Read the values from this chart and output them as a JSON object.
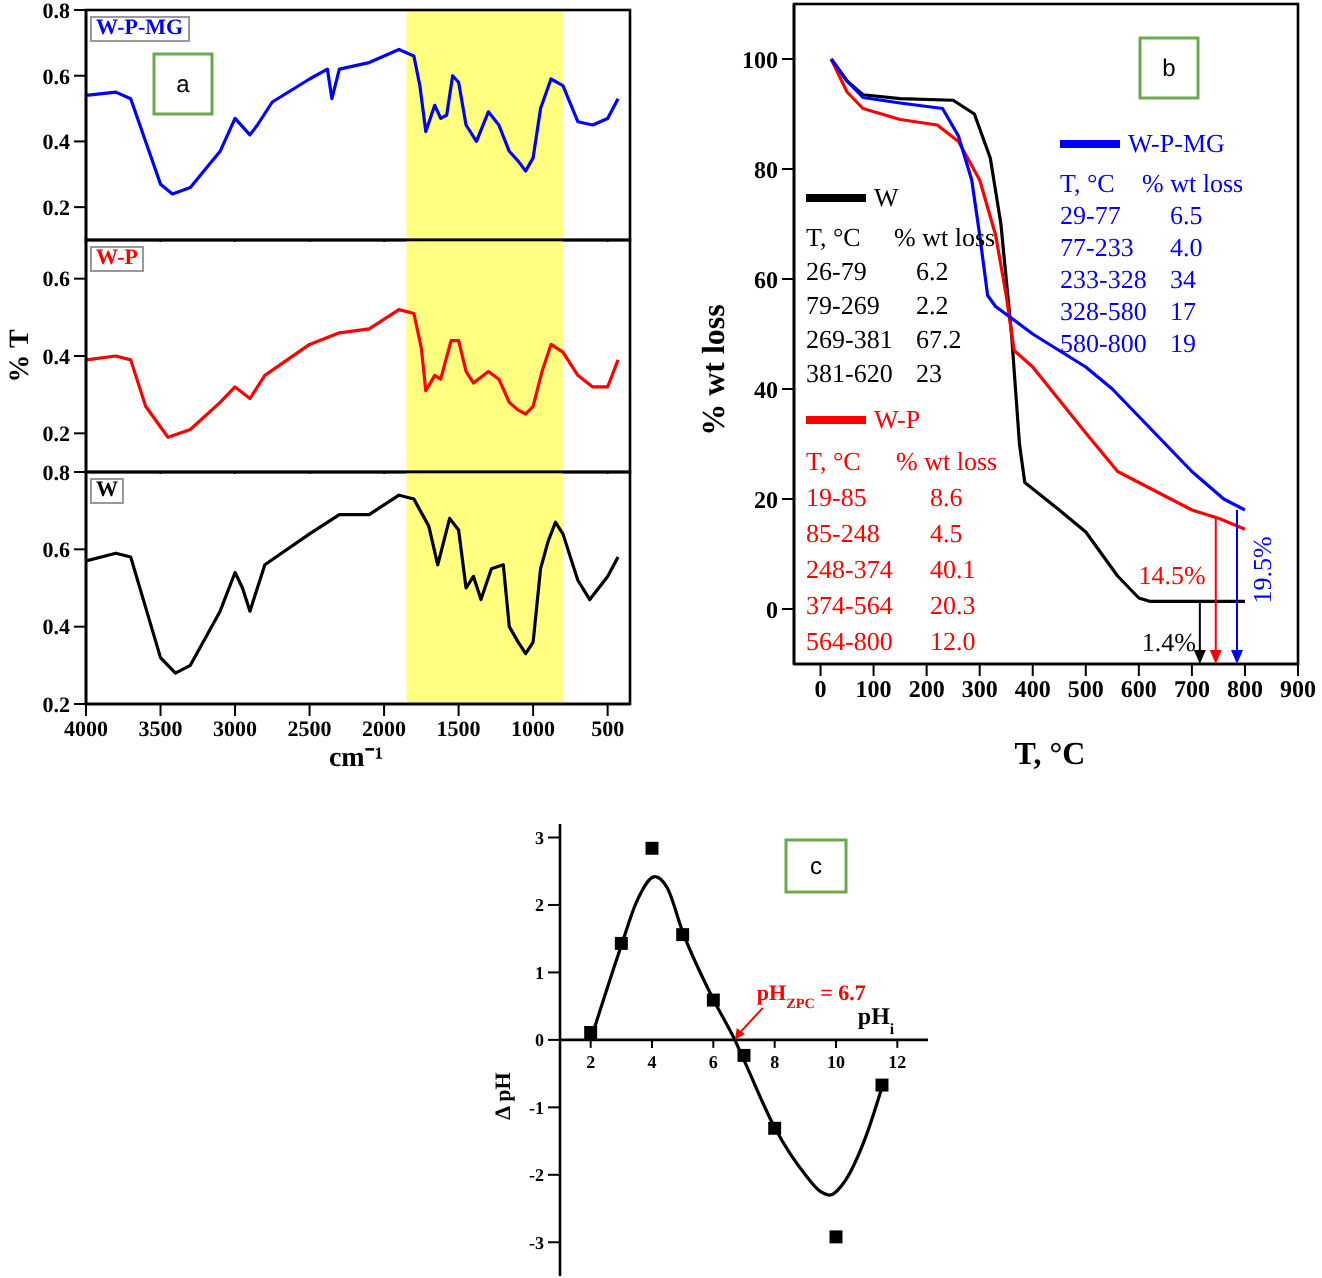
{
  "chart_data": [
    {
      "type": "line",
      "series": [
        {
          "name": "W-P-MG",
          "color": "#0000ff",
          "marker": "none",
          "x": [
            4000,
            3800,
            3700,
            3600,
            3500,
            3420,
            3300,
            3100,
            3000,
            2900,
            2850,
            2750,
            2500,
            2380,
            2350,
            2300,
            2100,
            1900,
            1800,
            1760,
            1720,
            1660,
            1620,
            1580,
            1540,
            1500,
            1450,
            1380,
            1300,
            1230,
            1160,
            1100,
            1050,
            1000,
            950,
            880,
            800,
            700,
            600,
            500,
            430
          ],
          "values": [
            0.54,
            0.55,
            0.53,
            0.4,
            0.27,
            0.24,
            0.26,
            0.37,
            0.47,
            0.42,
            0.45,
            0.52,
            0.59,
            0.62,
            0.53,
            0.62,
            0.64,
            0.68,
            0.66,
            0.57,
            0.43,
            0.51,
            0.47,
            0.48,
            0.6,
            0.58,
            0.45,
            0.4,
            0.49,
            0.45,
            0.37,
            0.34,
            0.31,
            0.35,
            0.5,
            0.59,
            0.57,
            0.46,
            0.45,
            0.47,
            0.53
          ]
        }
      ],
      "xlim": [
        4000,
        350
      ],
      "xticks": [
        4000,
        3500,
        3000,
        2500,
        2000,
        1500,
        1000,
        500
      ],
      "ylim": [
        0.1,
        0.8
      ],
      "yticks": [
        0.2,
        0.4,
        0.6,
        0.8
      ],
      "tick_labels": "y",
      "bands": [
        {
          "axis": "x",
          "from": 1850,
          "to": 800,
          "color": "#ffff80"
        }
      ],
      "legend": "top left",
      "annotations": [
        "a"
      ]
    },
    {
      "type": "line",
      "series": [
        {
          "name": "W-P",
          "color": "#ff0000",
          "marker": "none",
          "x": [
            4000,
            3800,
            3700,
            3600,
            3450,
            3300,
            3100,
            3000,
            2900,
            2800,
            2500,
            2300,
            2100,
            1900,
            1800,
            1750,
            1720,
            1660,
            1620,
            1550,
            1500,
            1450,
            1400,
            1300,
            1230,
            1160,
            1100,
            1050,
            1000,
            940,
            880,
            800,
            700,
            600,
            500,
            430
          ],
          "values": [
            0.39,
            0.4,
            0.39,
            0.27,
            0.19,
            0.21,
            0.28,
            0.32,
            0.29,
            0.35,
            0.43,
            0.46,
            0.47,
            0.52,
            0.51,
            0.42,
            0.31,
            0.35,
            0.34,
            0.44,
            0.44,
            0.36,
            0.33,
            0.36,
            0.34,
            0.28,
            0.26,
            0.25,
            0.27,
            0.36,
            0.43,
            0.41,
            0.35,
            0.32,
            0.32,
            0.39
          ]
        }
      ],
      "xlim": [
        4000,
        350
      ],
      "xticks": [
        4000,
        3500,
        3000,
        2500,
        2000,
        1500,
        1000,
        500
      ],
      "ylim": [
        0.1,
        0.7
      ],
      "yticks": [
        0.2,
        0.4,
        0.6
      ],
      "tick_labels": "y",
      "ylabel": "% T",
      "bands": [
        {
          "axis": "x",
          "from": 1850,
          "to": 800,
          "color": "#ffff80"
        }
      ],
      "legend": "top left"
    },
    {
      "type": "line",
      "series": [
        {
          "name": "W",
          "color": "#000000",
          "marker": "none",
          "x": [
            4000,
            3800,
            3700,
            3600,
            3500,
            3400,
            3300,
            3100,
            3000,
            2950,
            2900,
            2800,
            2500,
            2300,
            2100,
            1900,
            1800,
            1700,
            1640,
            1560,
            1500,
            1450,
            1400,
            1350,
            1280,
            1200,
            1160,
            1100,
            1050,
            1000,
            950,
            900,
            850,
            800,
            700,
            620,
            500,
            430
          ],
          "values": [
            0.57,
            0.59,
            0.58,
            0.45,
            0.32,
            0.28,
            0.3,
            0.44,
            0.54,
            0.5,
            0.44,
            0.56,
            0.64,
            0.69,
            0.69,
            0.74,
            0.73,
            0.66,
            0.56,
            0.68,
            0.65,
            0.5,
            0.53,
            0.47,
            0.55,
            0.56,
            0.4,
            0.36,
            0.33,
            0.36,
            0.55,
            0.62,
            0.67,
            0.64,
            0.52,
            0.47,
            0.53,
            0.58
          ]
        }
      ],
      "xlim": [
        4000,
        350
      ],
      "xticks": [
        4000,
        3500,
        3000,
        2500,
        2000,
        1500,
        1000,
        500
      ],
      "ylim": [
        0.2,
        0.8
      ],
      "yticks": [
        0.2,
        0.4,
        0.6,
        0.8
      ],
      "xlabel": "cm⁻¹",
      "bands": [
        {
          "axis": "x",
          "from": 1850,
          "to": 800,
          "color": "#ffff80"
        }
      ],
      "legend": "top left"
    },
    {
      "type": "line",
      "series": [
        {
          "name": "W",
          "color": "#000000",
          "marker": "none",
          "x": [
            20,
            50,
            80,
            150,
            250,
            290,
            320,
            340,
            360,
            375,
            385,
            450,
            500,
            560,
            600,
            620,
            800
          ],
          "values": [
            100,
            96,
            93.5,
            92.8,
            92.5,
            90,
            82,
            70,
            50,
            30,
            23,
            18,
            14,
            6,
            2,
            1.4,
            1.4
          ]
        },
        {
          "name": "W-P",
          "color": "#ff0000",
          "marker": "none",
          "x": [
            20,
            50,
            80,
            150,
            220,
            260,
            300,
            330,
            350,
            365,
            400,
            450,
            500,
            560,
            620,
            700,
            750,
            800
          ],
          "values": [
            100,
            94,
            91,
            89,
            88,
            85,
            78,
            68,
            57,
            47,
            44,
            38,
            32,
            25,
            22,
            18,
            16.5,
            14.5
          ]
        },
        {
          "name": "W-P-MG",
          "color": "#0000ff",
          "marker": "none",
          "x": [
            20,
            50,
            80,
            150,
            230,
            260,
            285,
            300,
            315,
            330,
            400,
            500,
            550,
            600,
            700,
            760,
            800
          ],
          "values": [
            100,
            96,
            93,
            92,
            91,
            86,
            78,
            68,
            57,
            55,
            50,
            44,
            40,
            35,
            25,
            20,
            18
          ]
        }
      ],
      "xlim": [
        -50,
        900
      ],
      "xticks": [
        0,
        100,
        200,
        300,
        400,
        500,
        600,
        700,
        800,
        900
      ],
      "ylim": [
        -10,
        110
      ],
      "yticks": [
        0,
        20,
        40,
        60,
        80,
        100
      ],
      "xlabel": "T, °C",
      "ylabel": "% wt loss",
      "legend": "left",
      "annotations": [
        "b",
        {
          "text": "1.4%",
          "x": 715,
          "y": 1.4
        },
        {
          "text": "14.5%",
          "x": 745,
          "y": 16.5
        },
        {
          "text": "19.5%",
          "x": 785,
          "y": 18
        },
        "T, °C",
        "% wt loss",
        "26-79",
        "6.2",
        "79-269",
        "2.2",
        "269-381",
        "67.2",
        "381-620",
        "23",
        "T, °C",
        "% wt loss",
        "19-85",
        "8.6",
        "85-248",
        "4.5",
        "248-374",
        "40.1",
        "374-564",
        "20.3",
        "564-800",
        "12.0",
        "T, °C",
        "% wt loss",
        "29-77",
        "6.5",
        "77-233",
        "4.0",
        "233-328",
        "34",
        "328-580",
        "17",
        "580-800",
        "19"
      ]
    },
    {
      "type": "scatter",
      "series": [
        {
          "color": "#000000",
          "marker": "square",
          "x": [
            2,
            3,
            4,
            5,
            6,
            7,
            8,
            10,
            11.5
          ],
          "values": [
            0.11,
            1.43,
            2.84,
            1.56,
            0.59,
            -0.23,
            -1.31,
            -2.92,
            -0.67
          ]
        },
        {
          "type": "line",
          "color": "#000000",
          "marker": "none",
          "x": [
            2,
            3,
            3.5,
            4.1,
            4.5,
            5,
            6,
            6.7,
            7,
            8,
            9,
            9.5,
            9.8,
            10.2,
            11,
            11.5
          ],
          "values": [
            0,
            1.4,
            2.05,
            2.42,
            2.25,
            1.6,
            0.6,
            0,
            -0.3,
            -1.3,
            -2,
            -2.25,
            -2.3,
            -2.15,
            -1.4,
            -0.7
          ]
        }
      ],
      "xlim": [
        1,
        13
      ],
      "xticks": [
        2,
        4,
        6,
        8,
        10,
        12
      ],
      "ylim": [
        -3.5,
        3.2
      ],
      "yticks": [
        -3,
        -2,
        -1,
        0,
        1,
        2,
        3
      ],
      "xlabel": "pH$_{i}$",
      "ylabel": "Δ pH",
      "annotations": [
        "c",
        {
          "text": "pH$_{ZPC}$ = 6.7",
          "x": 6.7,
          "y": 0
        }
      ]
    }
  ]
}
